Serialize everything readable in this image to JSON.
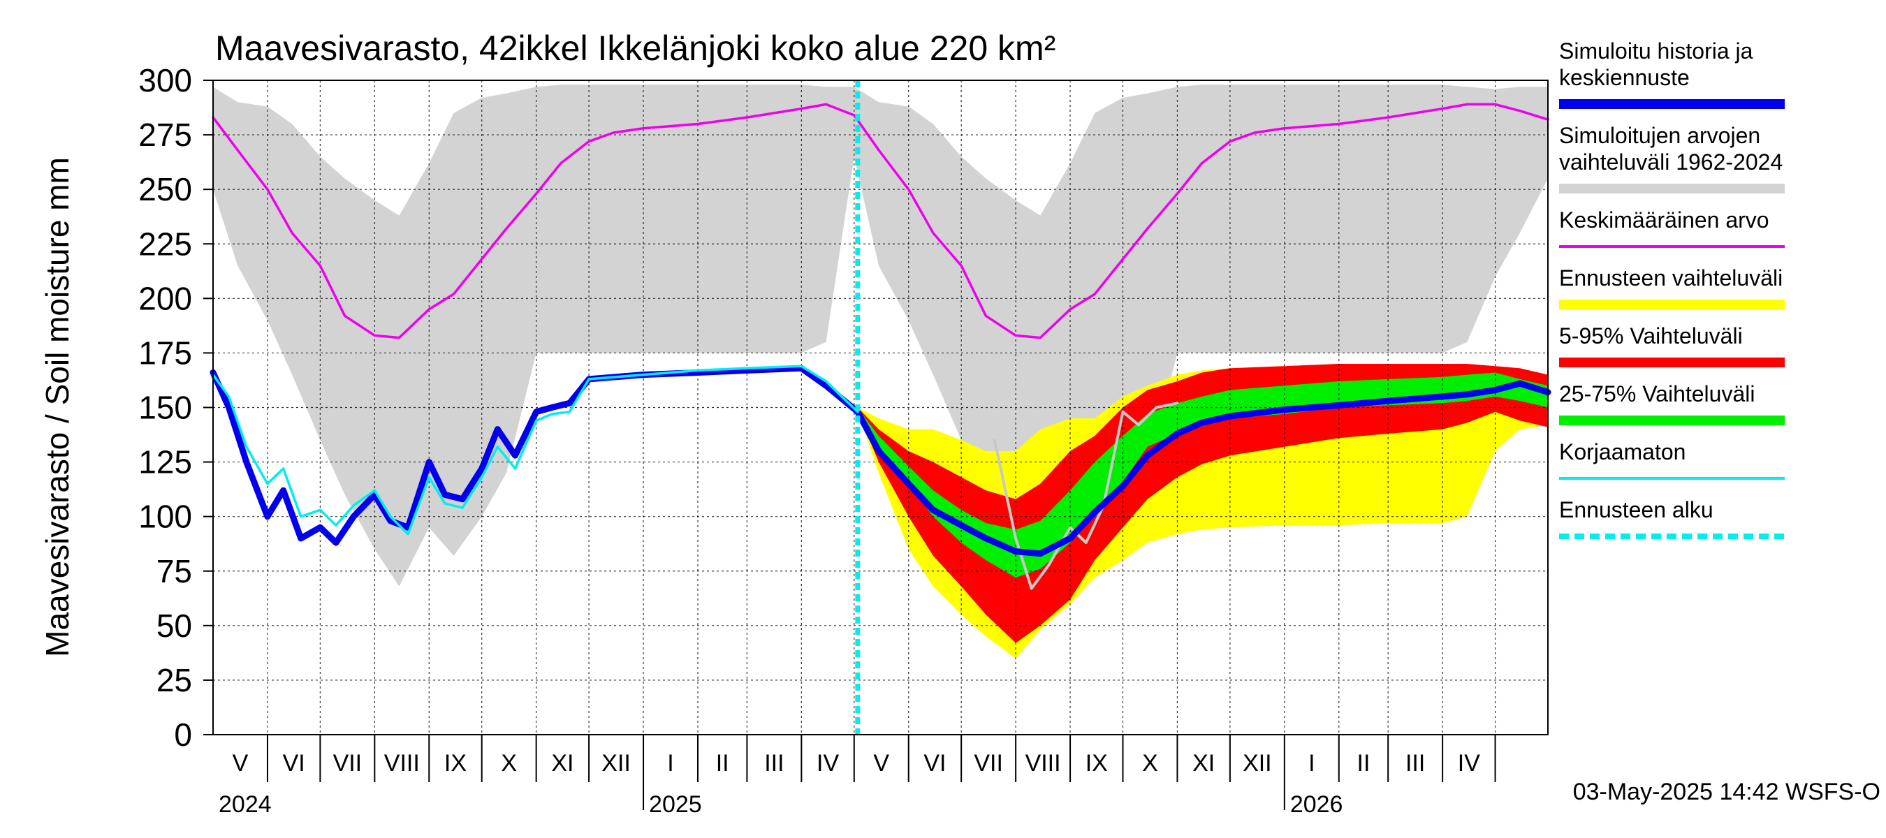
{
  "chart_data": {
    "type": "area",
    "title": "Maavesivarasto, 42ikkel Ikkelänjoki koko alue 220 km²",
    "ylabel": "Maavesivarasto / Soil moisture   mm",
    "ylim": [
      0,
      300
    ],
    "yticks": [
      "0",
      "25",
      "50",
      "75",
      "100",
      "125",
      "150",
      "175",
      "200",
      "225",
      "250",
      "275",
      "300"
    ],
    "x_range": [
      "2024-05-01",
      "2026-05-31"
    ],
    "month_labels": [
      "V",
      "VI",
      "VII",
      "VIII",
      "IX",
      "X",
      "XI",
      "XII",
      "I",
      "II",
      "III",
      "IV",
      "V",
      "VI",
      "VII",
      "VIII",
      "IX",
      "X",
      "XI",
      "XII",
      "I",
      "II",
      "III",
      "IV"
    ],
    "year_labels": [
      {
        "label": "2024",
        "date": "2024-05-01"
      },
      {
        "label": "2025",
        "date": "2025-01-01"
      },
      {
        "label": "2026",
        "date": "2026-01-01"
      }
    ],
    "forecast_start": "2025-05-03",
    "timestamp": "03-May-2025 14:42 WSFS-O",
    "grid": true,
    "legend_position": "right",
    "legend": [
      {
        "label": "Simuloitu historia ja keskiennuste",
        "lines": [
          "Simuloitu historia ja",
          "keskiennuste"
        ],
        "color": "#0000ee",
        "style": "thick"
      },
      {
        "label": "Simuloitujen arvojen vaihteluväli 1962-2024",
        "lines": [
          "Simuloitujen arvojen",
          "vaihteluväli 1962-2024"
        ],
        "color": "#d3d3d3",
        "style": "thick"
      },
      {
        "label": "Keskimääräinen arvo",
        "lines": [
          "Keskimääräinen arvo"
        ],
        "color": "#ee00ee",
        "style": "thin"
      },
      {
        "label": "Ennusteen vaihteluväli",
        "lines": [
          "Ennusteen vaihteluväli"
        ],
        "color": "#ffff00",
        "style": "thick"
      },
      {
        "label": "5-95% Vaihteluväli",
        "lines": [
          "5-95% Vaihteluväli"
        ],
        "color": "#ff0000",
        "style": "thick"
      },
      {
        "label": "25-75% Vaihteluväli",
        "lines": [
          "25-75% Vaihteluväli"
        ],
        "color": "#00ee00",
        "style": "thick"
      },
      {
        "label": "Korjaamaton",
        "lines": [
          "Korjaamaton"
        ],
        "color": "#00eeee",
        "style": "thin"
      },
      {
        "label": "Ennusteen alku",
        "lines": [
          "Ennusteen alku"
        ],
        "color": "#00eeee",
        "style": "dashed"
      }
    ],
    "series": [
      {
        "name": "Simuloitujen arvojen vaihteluväli 1962-2024",
        "kind": "band",
        "x": [
          "2024-05-01",
          "2024-05-15",
          "2024-06-01",
          "2024-06-15",
          "2024-07-01",
          "2024-07-15",
          "2024-08-01",
          "2024-08-15",
          "2024-09-01",
          "2024-09-15",
          "2024-10-01",
          "2024-10-15",
          "2024-11-01",
          "2024-11-15",
          "2024-12-01",
          "2024-12-15",
          "2025-01-01",
          "2025-02-01",
          "2025-03-01",
          "2025-04-01",
          "2025-04-15",
          "2025-05-01",
          "2025-05-15",
          "2025-06-01",
          "2025-06-15",
          "2025-07-01",
          "2025-07-15",
          "2025-08-01",
          "2025-08-15",
          "2025-09-01",
          "2025-09-15",
          "2025-10-01",
          "2025-10-15",
          "2025-11-01",
          "2025-11-15",
          "2025-12-01",
          "2025-12-15",
          "2026-01-01",
          "2026-02-01",
          "2026-03-01",
          "2026-04-01",
          "2026-04-15",
          "2026-05-01",
          "2026-05-15",
          "2026-05-31"
        ],
        "low": [
          250,
          215,
          190,
          165,
          135,
          110,
          85,
          68,
          95,
          82,
          100,
          120,
          175,
          175,
          175,
          175,
          175,
          175,
          175,
          175,
          180,
          265,
          215,
          190,
          165,
          135,
          110,
          85,
          68,
          95,
          82,
          100,
          120,
          175,
          175,
          175,
          175,
          175,
          175,
          175,
          175,
          180,
          210,
          230,
          255
        ],
        "high": [
          297,
          290,
          288,
          280,
          265,
          255,
          245,
          238,
          262,
          285,
          292,
          294,
          297,
          298,
          298,
          298,
          298,
          298,
          298,
          298,
          297,
          297,
          290,
          288,
          280,
          265,
          255,
          245,
          238,
          262,
          285,
          292,
          294,
          297,
          298,
          298,
          298,
          298,
          298,
          298,
          298,
          297,
          296,
          297,
          297
        ]
      },
      {
        "name": "Keskimääräinen arvo",
        "kind": "line",
        "x": [
          "2024-05-01",
          "2024-05-15",
          "2024-06-01",
          "2024-06-15",
          "2024-07-01",
          "2024-07-15",
          "2024-08-01",
          "2024-08-15",
          "2024-09-01",
          "2024-09-15",
          "2024-10-01",
          "2024-10-15",
          "2024-11-01",
          "2024-11-15",
          "2024-12-01",
          "2024-12-15",
          "2025-01-01",
          "2025-02-01",
          "2025-03-01",
          "2025-04-01",
          "2025-04-15",
          "2025-05-01",
          "2025-05-15",
          "2025-06-01",
          "2025-06-15",
          "2025-07-01",
          "2025-07-15",
          "2025-08-01",
          "2025-08-15",
          "2025-09-01",
          "2025-09-15",
          "2025-10-01",
          "2025-10-15",
          "2025-11-01",
          "2025-11-15",
          "2025-12-01",
          "2025-12-15",
          "2026-01-01",
          "2026-02-01",
          "2026-03-01",
          "2026-04-01",
          "2026-04-15",
          "2026-05-01",
          "2026-05-15",
          "2026-05-31"
        ],
        "y": [
          283,
          268,
          250,
          230,
          215,
          192,
          183,
          182,
          195,
          202,
          218,
          232,
          248,
          262,
          272,
          276,
          278,
          280,
          283,
          287,
          289,
          284,
          268,
          250,
          230,
          215,
          192,
          183,
          182,
          195,
          202,
          218,
          232,
          248,
          262,
          272,
          276,
          278,
          280,
          283,
          287,
          289,
          289,
          286,
          282
        ]
      },
      {
        "name": "Ennusteen vaihteluväli",
        "kind": "band",
        "x": [
          "2025-05-03",
          "2025-05-15",
          "2025-06-01",
          "2025-06-15",
          "2025-07-01",
          "2025-07-15",
          "2025-08-01",
          "2025-08-15",
          "2025-09-01",
          "2025-09-15",
          "2025-10-01",
          "2025-10-15",
          "2025-11-01",
          "2025-11-15",
          "2025-12-01",
          "2026-01-01",
          "2026-02-01",
          "2026-03-01",
          "2026-04-01",
          "2026-04-15",
          "2026-05-01",
          "2026-05-15",
          "2026-05-31"
        ],
        "low": [
          148,
          120,
          85,
          68,
          55,
          45,
          35,
          48,
          60,
          72,
          80,
          88,
          92,
          94,
          95,
          96,
          96,
          97,
          97,
          100,
          130,
          140,
          142
        ],
        "high": [
          150,
          145,
          140,
          140,
          135,
          130,
          130,
          140,
          145,
          145,
          155,
          160,
          165,
          167,
          168,
          169,
          170,
          170,
          170,
          169,
          167,
          167,
          164
        ]
      },
      {
        "name": "5-95% Vaihteluväli",
        "kind": "band",
        "x": [
          "2025-05-03",
          "2025-05-15",
          "2025-06-01",
          "2025-06-15",
          "2025-07-01",
          "2025-07-15",
          "2025-08-01",
          "2025-08-15",
          "2025-09-01",
          "2025-09-15",
          "2025-10-01",
          "2025-10-15",
          "2025-11-01",
          "2025-11-15",
          "2025-12-01",
          "2026-01-01",
          "2026-02-01",
          "2026-03-01",
          "2026-04-01",
          "2026-04-15",
          "2026-05-01",
          "2026-05-15",
          "2026-05-31"
        ],
        "low": [
          148,
          125,
          100,
          82,
          68,
          55,
          42,
          50,
          62,
          80,
          95,
          108,
          118,
          124,
          128,
          132,
          136,
          138,
          140,
          143,
          148,
          144,
          141
        ],
        "high": [
          150,
          140,
          130,
          125,
          118,
          112,
          108,
          115,
          130,
          137,
          150,
          158,
          162,
          166,
          168,
          169,
          170,
          170,
          170,
          170,
          169,
          168,
          165
        ]
      },
      {
        "name": "25-75% Vaihteluväli",
        "kind": "band",
        "x": [
          "2025-05-03",
          "2025-05-15",
          "2025-06-01",
          "2025-06-15",
          "2025-07-01",
          "2025-07-15",
          "2025-08-01",
          "2025-08-15",
          "2025-09-01",
          "2025-09-15",
          "2025-10-01",
          "2025-10-15",
          "2025-11-01",
          "2025-11-15",
          "2025-12-01",
          "2026-01-01",
          "2026-02-01",
          "2026-03-01",
          "2026-04-01",
          "2026-04-15",
          "2026-05-01",
          "2026-05-15",
          "2026-05-31"
        ],
        "low": [
          148,
          132,
          115,
          100,
          88,
          80,
          72,
          76,
          88,
          100,
          116,
          132,
          138,
          142,
          145,
          147,
          150,
          151,
          152,
          153,
          155,
          153,
          150
        ],
        "high": [
          150,
          137,
          123,
          112,
          103,
          97,
          94,
          98,
          112,
          125,
          137,
          147,
          152,
          155,
          158,
          160,
          162,
          163,
          164,
          165,
          166,
          163,
          160
        ]
      },
      {
        "name": "Simuloitu historia ja keskiennuste",
        "kind": "line",
        "x": [
          "2024-05-01",
          "2024-05-10",
          "2024-05-20",
          "2024-06-01",
          "2024-06-10",
          "2024-06-20",
          "2024-07-01",
          "2024-07-10",
          "2024-07-20",
          "2024-08-01",
          "2024-08-10",
          "2024-08-20",
          "2024-09-01",
          "2024-09-10",
          "2024-09-20",
          "2024-10-01",
          "2024-10-10",
          "2024-10-20",
          "2024-11-01",
          "2024-11-10",
          "2024-11-20",
          "2024-12-01",
          "2025-01-01",
          "2025-02-01",
          "2025-03-01",
          "2025-04-01",
          "2025-04-15",
          "2025-05-03",
          "2025-05-15",
          "2025-06-01",
          "2025-06-15",
          "2025-07-01",
          "2025-07-15",
          "2025-08-01",
          "2025-08-15",
          "2025-09-01",
          "2025-09-15",
          "2025-10-01",
          "2025-10-15",
          "2025-11-01",
          "2025-11-15",
          "2025-12-01",
          "2026-01-01",
          "2026-02-01",
          "2026-03-01",
          "2026-04-01",
          "2026-04-15",
          "2026-05-01",
          "2026-05-15",
          "2026-05-31"
        ],
        "y": [
          166,
          150,
          125,
          100,
          112,
          90,
          95,
          88,
          100,
          110,
          98,
          95,
          125,
          110,
          108,
          122,
          140,
          128,
          148,
          150,
          152,
          163,
          165,
          166,
          167,
          168,
          160,
          148,
          130,
          115,
          103,
          96,
          90,
          84,
          83,
          90,
          102,
          114,
          128,
          138,
          143,
          146,
          149,
          151,
          153,
          155,
          156,
          158,
          161,
          157
        ]
      },
      {
        "name": "Korjaamaton",
        "kind": "line",
        "x": [
          "2024-05-01",
          "2024-05-10",
          "2024-05-20",
          "2024-06-01",
          "2024-06-10",
          "2024-06-20",
          "2024-07-01",
          "2024-07-10",
          "2024-07-20",
          "2024-08-01",
          "2024-08-10",
          "2024-08-20",
          "2024-09-01",
          "2024-09-10",
          "2024-09-20",
          "2024-10-01",
          "2024-10-10",
          "2024-10-20",
          "2024-11-01",
          "2024-11-10",
          "2024-11-20",
          "2024-12-01",
          "2025-01-01",
          "2025-02-01",
          "2025-03-01",
          "2025-04-01",
          "2025-04-15",
          "2025-05-03"
        ],
        "y": [
          165,
          155,
          132,
          115,
          122,
          100,
          103,
          96,
          105,
          112,
          100,
          92,
          118,
          106,
          104,
          118,
          132,
          122,
          144,
          147,
          148,
          163,
          165,
          167,
          168,
          169,
          162,
          148
        ]
      },
      {
        "name": "",
        "kind": "line",
        "color": "#c8c8c8",
        "x": [
          "2025-07-20",
          "2025-08-01",
          "2025-08-10",
          "2025-08-20",
          "2025-09-01",
          "2025-09-10",
          "2025-09-20",
          "2025-10-01",
          "2025-10-10",
          "2025-10-20",
          "2025-11-01"
        ],
        "y": [
          135,
          90,
          67,
          78,
          95,
          88,
          105,
          148,
          142,
          150,
          152
        ]
      }
    ]
  }
}
